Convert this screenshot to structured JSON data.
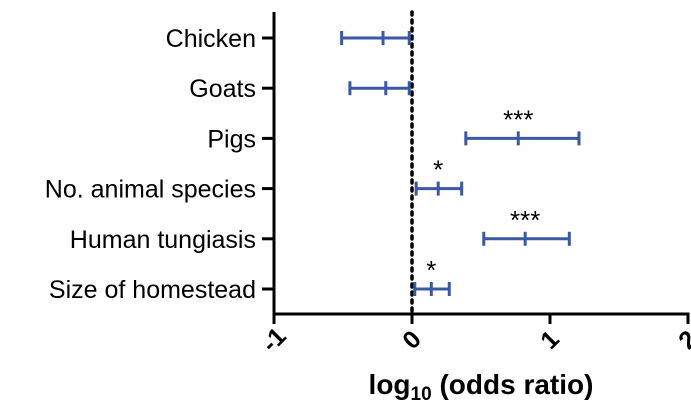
{
  "chart_data": {
    "type": "forest",
    "categories": [
      "Chicken",
      "Goats",
      "Pigs",
      "No. animal species",
      "Human tungiasis",
      "Size of homestead"
    ],
    "estimates": [
      -0.21,
      -0.19,
      0.77,
      0.19,
      0.82,
      0.14
    ],
    "ci_lower": [
      -0.51,
      -0.45,
      0.39,
      0.03,
      0.52,
      0.02
    ],
    "ci_upper": [
      -0.02,
      -0.02,
      1.21,
      0.36,
      1.14,
      0.27
    ],
    "significance": [
      "",
      "",
      "***",
      "*",
      "***",
      "*"
    ],
    "reference_line": 0,
    "xlim": [
      -1,
      2
    ],
    "x_ticks": [
      "-1",
      "0",
      "1",
      "2"
    ],
    "xlabel_main": "log",
    "xlabel_sub": "10",
    "xlabel_rest": " (odds ratio)",
    "series_color": "#3a58a4"
  }
}
